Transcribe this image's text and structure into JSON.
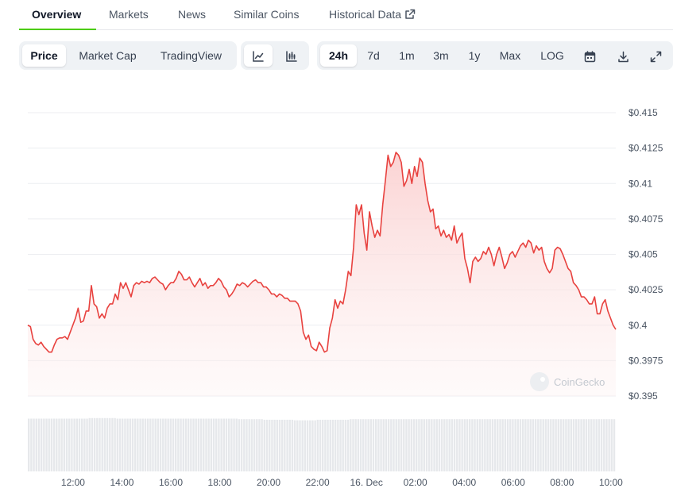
{
  "tabs": [
    {
      "label": "Overview",
      "active": true
    },
    {
      "label": "Markets"
    },
    {
      "label": "News"
    },
    {
      "label": "Similar Coins"
    },
    {
      "label": "Historical Data",
      "icon": "external-link-icon"
    }
  ],
  "toolbar": {
    "view_buttons": [
      {
        "label": "Price",
        "active": true
      },
      {
        "label": "Market Cap"
      },
      {
        "label": "TradingView"
      }
    ],
    "chart_type_buttons": [
      {
        "icon": "line-chart-icon",
        "active": true
      },
      {
        "icon": "candlestick-icon"
      }
    ],
    "range_buttons": [
      {
        "label": "24h",
        "active": true
      },
      {
        "label": "7d"
      },
      {
        "label": "1m"
      },
      {
        "label": "3m"
      },
      {
        "label": "1y"
      },
      {
        "label": "Max"
      },
      {
        "label": "LOG"
      }
    ],
    "action_icons": [
      "calendar-icon",
      "download-icon",
      "expand-icon"
    ]
  },
  "watermark": "CoinGecko",
  "colors": {
    "line": "#e8423f",
    "area_top": "#fbd3d3",
    "volume": "#e6e8eb",
    "tab_accent": "#4bcc00"
  },
  "chart_data": {
    "type": "area",
    "y_ticks": [
      "$0.415",
      "$0.4125",
      "$0.41",
      "$0.4075",
      "$0.405",
      "$0.4025",
      "$0.4",
      "$0.3975",
      "$0.395"
    ],
    "ylim": [
      0.395,
      0.415
    ],
    "x_ticks": [
      "12:00",
      "14:00",
      "16:00",
      "18:00",
      "20:00",
      "22:00",
      "16. Dec",
      "02:00",
      "04:00",
      "06:00",
      "08:00",
      "10:00"
    ],
    "x_start_hour": 10.15,
    "x_end_hour": 34.2,
    "grid": true,
    "series": [
      {
        "values": [
          0.4,
          0.3999,
          0.399,
          0.3987,
          0.3986,
          0.3988,
          0.3985,
          0.3983,
          0.3981,
          0.3981,
          0.3986,
          0.399,
          0.3991,
          0.3991,
          0.3992,
          0.399,
          0.3995,
          0.4,
          0.4005,
          0.4012,
          0.4002,
          0.4003,
          0.401,
          0.401,
          0.4028,
          0.4015,
          0.4013,
          0.4005,
          0.4008,
          0.4005,
          0.4012,
          0.4015,
          0.4015,
          0.4022,
          0.4018,
          0.403,
          0.4026,
          0.403,
          0.4025,
          0.402,
          0.4028,
          0.403,
          0.4029,
          0.4031,
          0.403,
          0.4031,
          0.403,
          0.4033,
          0.4034,
          0.4032,
          0.403,
          0.4029,
          0.4025,
          0.4028,
          0.403,
          0.403,
          0.4033,
          0.4038,
          0.4036,
          0.4032,
          0.4032,
          0.4034,
          0.403,
          0.4027,
          0.403,
          0.4033,
          0.4028,
          0.403,
          0.4026,
          0.4028,
          0.4028,
          0.403,
          0.4033,
          0.4031,
          0.4027,
          0.4025,
          0.402,
          0.4022,
          0.4025,
          0.4029,
          0.4028,
          0.403,
          0.4029,
          0.4027,
          0.4029,
          0.4031,
          0.4032,
          0.403,
          0.403,
          0.4027,
          0.4027,
          0.4025,
          0.4022,
          0.4022,
          0.402,
          0.4022,
          0.4021,
          0.4019,
          0.4019,
          0.4017,
          0.4017,
          0.4017,
          0.4015,
          0.401,
          0.3995,
          0.399,
          0.3993,
          0.3985,
          0.3983,
          0.3982,
          0.3988,
          0.3985,
          0.3981,
          0.3982,
          0.3998,
          0.4005,
          0.4018,
          0.4012,
          0.4017,
          0.4015,
          0.4025,
          0.4038,
          0.4035,
          0.4055,
          0.4085,
          0.4078,
          0.4085,
          0.4065,
          0.4053,
          0.408,
          0.407,
          0.4062,
          0.4067,
          0.4063,
          0.4085,
          0.4102,
          0.412,
          0.4112,
          0.4115,
          0.4122,
          0.412,
          0.4115,
          0.4098,
          0.4102,
          0.411,
          0.41,
          0.4112,
          0.4105,
          0.4118,
          0.4115,
          0.41,
          0.4088,
          0.408,
          0.4082,
          0.4068,
          0.407,
          0.4063,
          0.4067,
          0.4062,
          0.4064,
          0.406,
          0.407,
          0.4058,
          0.4062,
          0.4065,
          0.4047,
          0.404,
          0.403,
          0.4045,
          0.4048,
          0.4045,
          0.4047,
          0.4052,
          0.405,
          0.4055,
          0.405,
          0.4042,
          0.405,
          0.4055,
          0.4048,
          0.404,
          0.4044,
          0.405,
          0.4052,
          0.4048,
          0.4052,
          0.4056,
          0.4058,
          0.4055,
          0.406,
          0.4058,
          0.4051,
          0.4056,
          0.4053,
          0.4055,
          0.4045,
          0.404,
          0.4037,
          0.404,
          0.4053,
          0.4055,
          0.4054,
          0.405,
          0.4045,
          0.404,
          0.4038,
          0.403,
          0.4028,
          0.4025,
          0.402,
          0.402,
          0.4018,
          0.4015,
          0.4015,
          0.402,
          0.4008,
          0.4008,
          0.4015,
          0.4018,
          0.401,
          0.4005,
          0.4,
          0.3997
        ]
      }
    ],
    "volume": [
      0.95,
      0.95,
      0.95,
      0.95,
      0.95,
      0.95,
      0.95,
      0.95,
      0.95,
      0.95,
      0.95,
      0.95,
      0.95,
      0.95,
      0.95,
      0.95,
      0.95,
      0.95,
      0.95,
      0.95,
      0.95,
      0.95,
      0.95,
      0.95,
      0.96,
      0.96,
      0.96,
      0.96,
      0.96,
      0.96,
      0.96,
      0.96,
      0.96,
      0.96,
      0.96,
      0.95,
      0.95,
      0.95,
      0.95,
      0.95,
      0.95,
      0.95,
      0.95,
      0.95,
      0.95,
      0.95,
      0.95,
      0.95,
      0.95,
      0.95,
      0.95,
      0.95,
      0.95,
      0.95,
      0.95,
      0.95,
      0.95,
      0.95,
      0.95,
      0.95,
      0.95,
      0.95,
      0.95,
      0.95,
      0.95,
      0.95,
      0.95,
      0.95,
      0.95,
      0.95,
      0.95,
      0.95,
      0.95,
      0.95,
      0.95,
      0.95,
      0.95,
      0.95,
      0.95,
      0.95,
      0.95,
      0.95,
      0.95,
      0.94,
      0.94,
      0.94,
      0.94,
      0.94,
      0.94,
      0.94,
      0.94,
      0.94,
      0.94,
      0.93,
      0.93,
      0.93,
      0.93,
      0.93,
      0.93,
      0.93,
      0.93,
      0.93,
      0.93,
      0.93,
      0.93,
      0.92,
      0.92,
      0.92,
      0.92,
      0.92,
      0.92,
      0.92,
      0.92,
      0.92,
      0.93,
      0.93,
      0.93,
      0.93,
      0.93,
      0.93,
      0.93,
      0.93,
      0.93,
      0.93,
      0.93,
      0.93,
      0.93,
      0.94,
      0.94,
      0.94,
      0.94,
      0.94,
      0.94,
      0.94,
      0.94,
      0.94,
      0.94,
      0.94,
      0.94,
      0.94,
      0.94,
      0.94,
      0.94,
      0.94,
      0.94,
      0.94,
      0.94,
      0.94,
      0.94,
      0.94,
      0.94,
      0.94,
      0.94,
      0.94,
      0.94,
      0.94,
      0.94,
      0.94,
      0.94,
      0.94,
      0.94,
      0.94,
      0.94,
      0.94,
      0.94,
      0.94,
      0.94,
      0.94,
      0.94,
      0.94,
      0.94,
      0.94,
      0.94,
      0.94,
      0.94,
      0.94,
      0.94,
      0.94,
      0.94,
      0.94,
      0.94,
      0.94,
      0.94,
      0.94,
      0.94,
      0.94,
      0.94,
      0.94,
      0.94,
      0.94,
      0.94,
      0.94,
      0.94,
      0.94,
      0.94,
      0.94,
      0.94,
      0.94,
      0.94,
      0.94,
      0.94,
      0.94,
      0.94,
      0.94,
      0.94,
      0.94,
      0.94,
      0.94,
      0.94,
      0.94,
      0.94,
      0.94,
      0.94,
      0.94,
      0.94,
      0.94,
      0.94,
      0.94,
      0.94,
      0.94,
      0.94,
      0.94,
      0.94,
      0.94,
      0.94,
      0.94,
      0.94,
      0.94,
      0.94,
      0.94,
      0.94,
      0.94
    ]
  }
}
